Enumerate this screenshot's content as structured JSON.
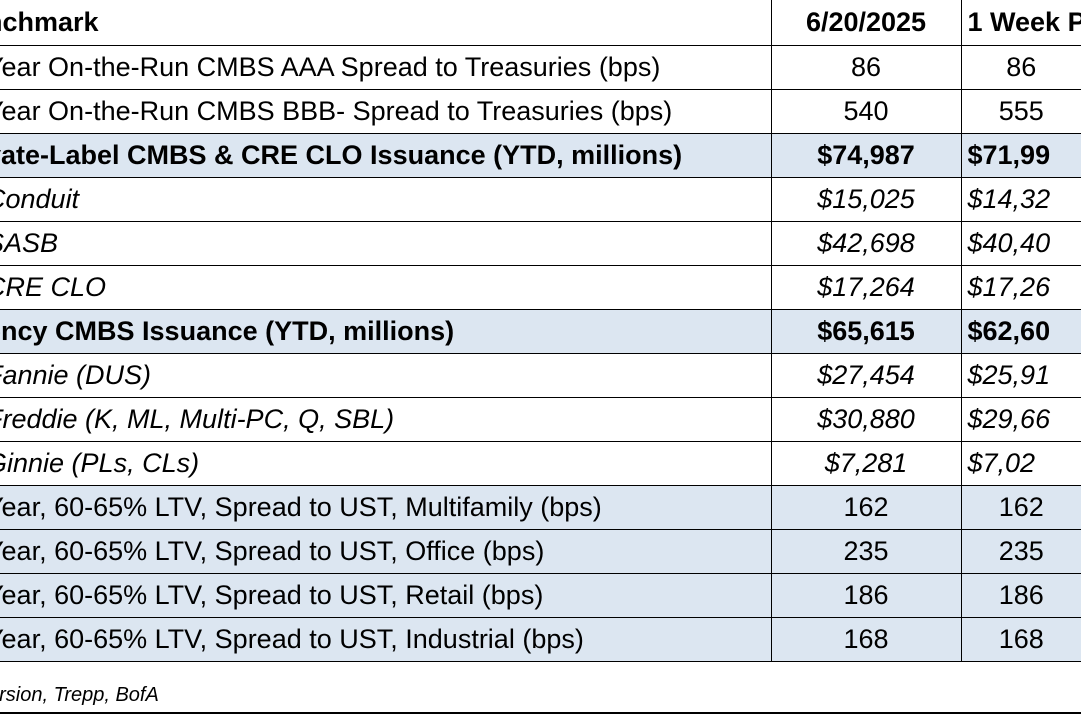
{
  "header": {
    "benchmark": "nchmark",
    "col1": "6/20/2025",
    "col2": "1 Week P"
  },
  "rows": [
    {
      "label": "Year On-the-Run CMBS AAA Spread to Treasuries (bps)",
      "v1": "86",
      "v2": "86"
    },
    {
      "label": "Year On-the-Run CMBS BBB- Spread to Treasuries (bps)",
      "v1": "540",
      "v2": "555"
    },
    {
      "label": "vate-Label CMBS & CRE CLO Issuance (YTD, millions)",
      "v1": "$74,987",
      "v2": "$71,99"
    },
    {
      "label": "Conduit",
      "v1": "$15,025",
      "v2": "$14,32"
    },
    {
      "label": "SASB",
      "v1": "$42,698",
      "v2": "$40,40"
    },
    {
      "label": "CRE CLO",
      "v1": "$17,264",
      "v2": "$17,26"
    },
    {
      "label": "ency CMBS Issuance (YTD, millions)",
      "v1": "$65,615",
      "v2": "$62,60"
    },
    {
      "label": "Fannie (DUS)",
      "v1": "$27,454",
      "v2": "$25,91"
    },
    {
      "label": "Freddie (K, ML, Multi-PC, Q, SBL)",
      "v1": "$30,880",
      "v2": "$29,66"
    },
    {
      "label": "Ginnie (PLs, CLs)",
      "v1": "$7,281",
      "v2": "$7,02"
    },
    {
      "label": "Year, 60-65% LTV, Spread to UST, Multifamily (bps)",
      "v1": "162",
      "v2": "162"
    },
    {
      "label": "Year, 60-65% LTV, Spread to UST, Office (bps)",
      "v1": "235",
      "v2": "235"
    },
    {
      "label": "Year, 60-65% LTV, Spread to UST, Retail (bps)",
      "v1": "186",
      "v2": "186"
    },
    {
      "label": "Year, 60-65% LTV, Spread to UST, Industrial (bps)",
      "v1": "168",
      "v2": "168"
    }
  ],
  "source": "ursion, Trepp, BofA",
  "colors": {
    "shade": "#dce6f1"
  }
}
